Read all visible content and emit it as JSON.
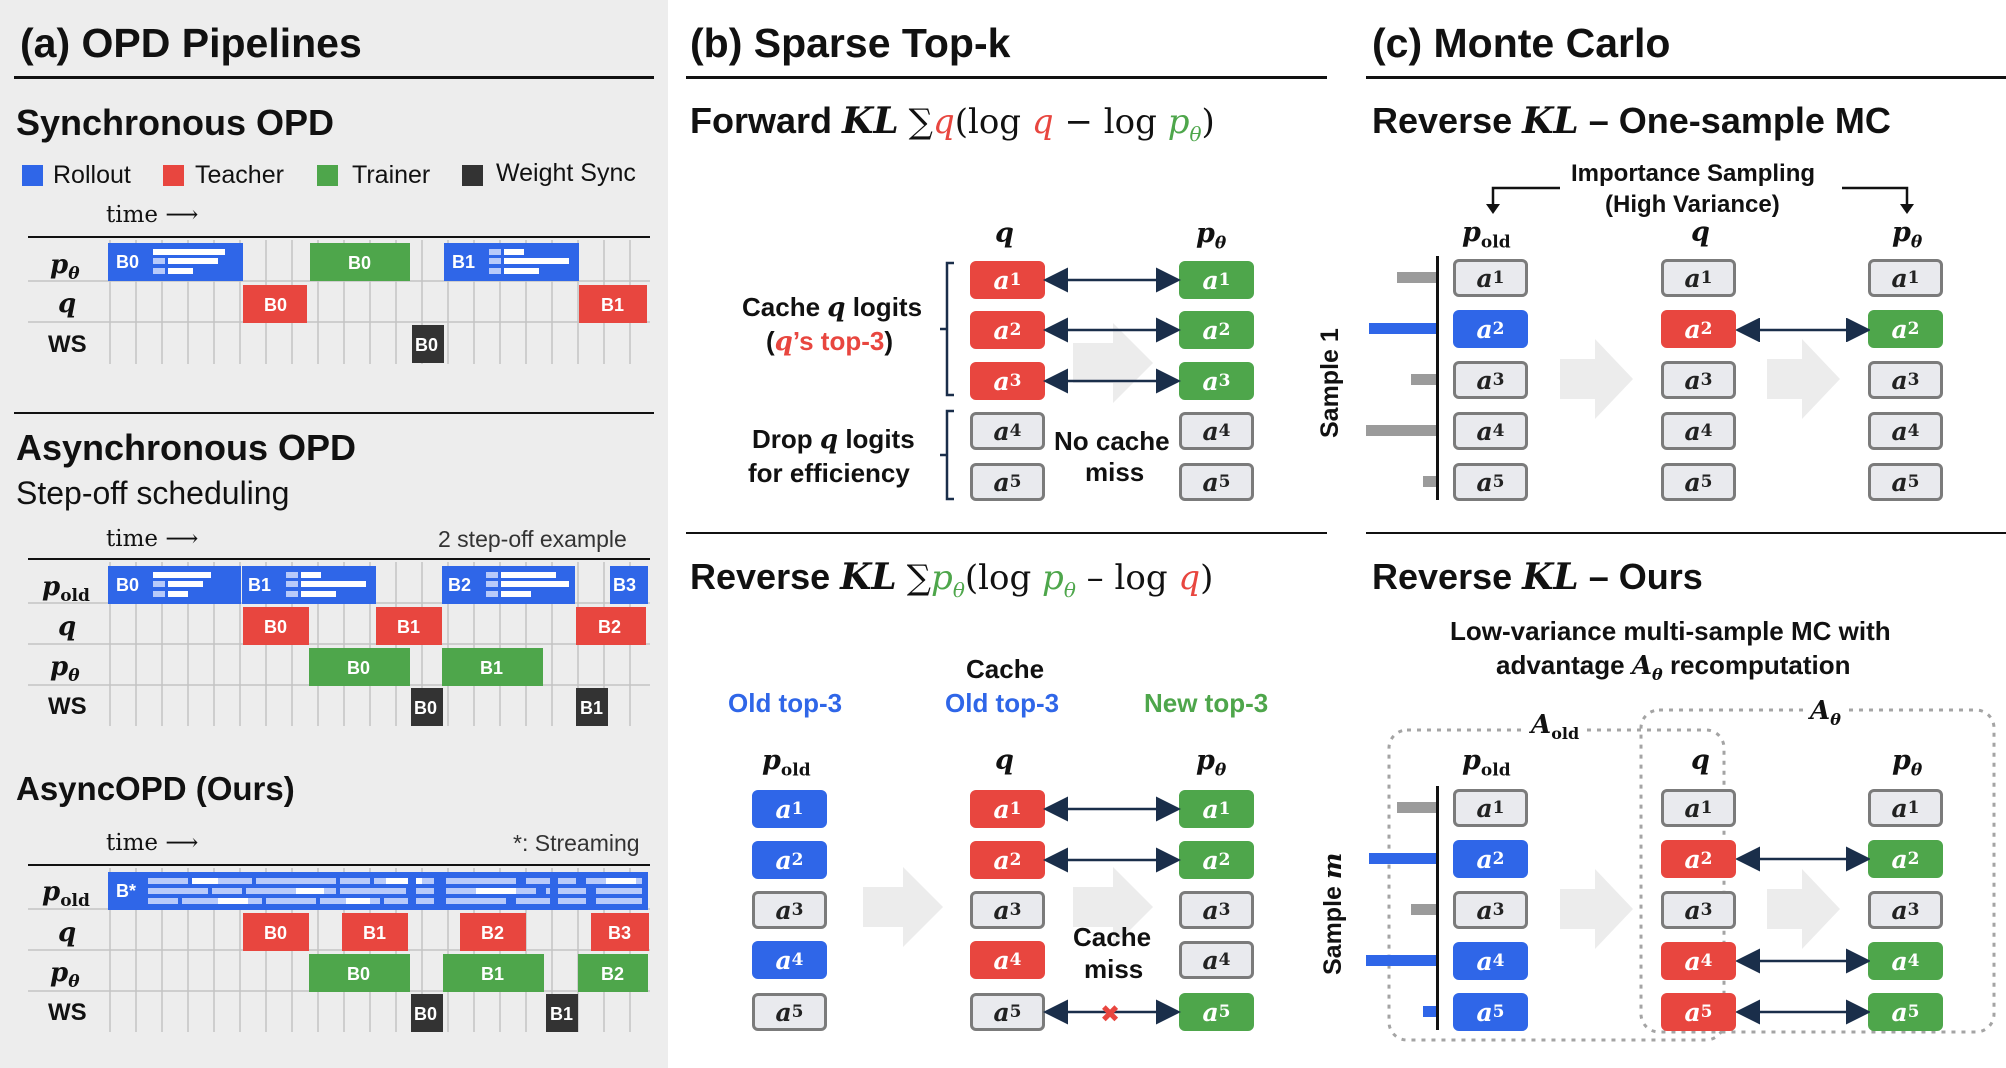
{
  "panel_a": {
    "title": "(a) OPD Pipelines",
    "sync": {
      "heading": "Synchronous OPD",
      "time_label": "time"
    },
    "legend": [
      {
        "label": "Rollout",
        "color": "#2f66e8"
      },
      {
        "label": "Teacher",
        "color": "#e8463f"
      },
      {
        "label": "Trainer",
        "color": "#4ea64b"
      },
      {
        "label": "Weight Sync",
        "color": "#333333"
      }
    ],
    "rows": {
      "p_theta": "p",
      "theta_sub": "θ",
      "q": "q",
      "ws": "WS",
      "p_old": "p",
      "old_sub": "old"
    },
    "sync_blocks": {
      "r0": "B0",
      "r1": "B1",
      "t0": "B0",
      "t1": "B1",
      "tr0": "B0",
      "ws0": "B0"
    },
    "async": {
      "heading": "Asynchronous OPD",
      "subheading": "Step-off scheduling",
      "time_label": "time",
      "example_note": "2 step-off example",
      "blocks": {
        "r0": "B0",
        "r1": "B1",
        "r2": "B2",
        "r3": "B3",
        "t0": "B0",
        "t1": "B1",
        "t2": "B2",
        "tr0": "B0",
        "tr1": "B1",
        "ws0": "B0",
        "ws1": "B1"
      }
    },
    "asyncopd": {
      "heading": "AsyncOPD (Ours)",
      "time_label": "time",
      "streaming_note": "*: Streaming",
      "blocks": {
        "stream": "B*",
        "t0": "B0",
        "t1": "B1",
        "t2": "B2",
        "t3": "B3",
        "tr0": "B0",
        "tr1": "B1",
        "tr2": "B2",
        "ws0": "B0",
        "ws1": "B1"
      }
    }
  },
  "panel_b": {
    "title": "(b) Sparse Top-k",
    "forward": {
      "heading_word": "Forward",
      "kl": "KL",
      "formula": {
        "sum": "∑",
        "q1": "q",
        "open": "(log ",
        "q2": "q",
        "minus": " − log ",
        "p": "p",
        "sub": "θ",
        "close": ")"
      },
      "col_q": "q",
      "col_p": "p",
      "col_p_sub": "θ",
      "cache_label_1": "Cache",
      "cache_label_q": "q",
      "cache_label_2": "logits",
      "cache_paren_q": "q",
      "cache_paren_rest": "’s top-3",
      "drop_label_1": "Drop",
      "drop_label_q": "q",
      "drop_label_2": "logits",
      "drop_label_3": "for efficiency",
      "no_cache_1": "No cache",
      "no_cache_2": "miss"
    },
    "reverse": {
      "heading_word": "Reverse",
      "kl": "KL",
      "formula": {
        "sum": "∑",
        "p1": "p",
        "sub1": "θ",
        "open": "(log ",
        "p2": "p",
        "sub2": "θ",
        "minus": " – log ",
        "q": "q",
        "close": ")"
      },
      "old_top3": "Old top-3",
      "cache_word": "Cache",
      "cache_old_top3": "Old top-3",
      "new_top3": "New top-3",
      "col_pold": "p",
      "col_pold_sub": "old",
      "col_q": "q",
      "col_p": "p",
      "col_p_sub": "θ",
      "cache_miss_1": "Cache",
      "cache_miss_2": "miss",
      "miss_mark": "✖"
    }
  },
  "panel_c": {
    "title": "(c) Monte Carlo",
    "one_sample": {
      "heading_word": "Reverse",
      "kl": "KL",
      "heading_rest": "– One-sample MC",
      "is_line1": "Importance Sampling",
      "is_line2": "(High Variance)",
      "col_pold": "p",
      "col_pold_sub": "old",
      "col_q": "q",
      "col_p": "p",
      "col_p_sub": "θ",
      "sample_label": "Sample 1",
      "bar_lengths_rel": [
        0.55,
        0.95,
        0.35,
        1.0,
        0.18
      ]
    },
    "ours": {
      "heading_word": "Reverse",
      "kl": "KL",
      "heading_rest": "– Ours",
      "desc_line1": "Low-variance multi-sample MC with",
      "desc_line2_pre": "advantage",
      "desc_A": "A",
      "desc_A_sub": "θ",
      "desc_line2_post": "recomputation",
      "a_old": "A",
      "a_old_sub": "old",
      "a_theta": "A",
      "a_theta_sub": "θ",
      "col_pold": "p",
      "col_pold_sub": "old",
      "col_q": "q",
      "col_p": "p",
      "col_p_sub": "θ",
      "sample_word": "Sample",
      "sample_m": "m",
      "bar_lengths_rel": [
        0.55,
        0.95,
        0.35,
        1.0,
        0.18
      ]
    }
  },
  "tokens": [
    {
      "letter": "a",
      "sub": "1"
    },
    {
      "letter": "a",
      "sub": "2"
    },
    {
      "letter": "a",
      "sub": "3"
    },
    {
      "letter": "a",
      "sub": "4"
    },
    {
      "letter": "a",
      "sub": "5"
    }
  ]
}
